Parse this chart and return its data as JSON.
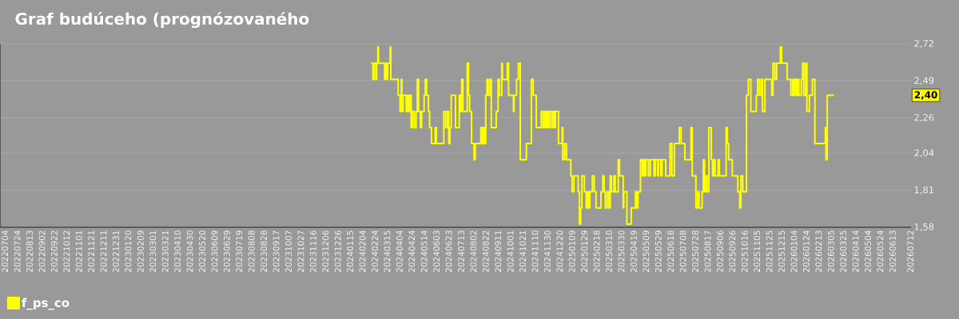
{
  "chart_data": {
    "type": "step",
    "title": "Graf budúceho (prognózovaného",
    "x": [
      "2024-02-18",
      "2024-02-21",
      "2024-02-23",
      "2024-02-26",
      "2024-02-27",
      "2024-02-29",
      "2024-03-01",
      "2024-03-11",
      "2024-03-13",
      "2024-03-14",
      "2024-03-16",
      "2024-03-20",
      "2024-03-21",
      "2024-04-02",
      "2024-04-05",
      "2024-04-07",
      "2024-04-08",
      "2024-04-10",
      "2024-04-15",
      "2024-04-17",
      "2024-04-19",
      "2024-04-21",
      "2024-04-23",
      "2024-04-25",
      "2024-04-28",
      "2024-05-01",
      "2024-05-03",
      "2024-05-05",
      "2024-05-08",
      "2024-05-10",
      "2024-05-14",
      "2024-05-16",
      "2024-05-18",
      "2024-05-21",
      "2024-05-23",
      "2024-05-26",
      "2024-06-01",
      "2024-06-03",
      "2024-06-15",
      "2024-06-18",
      "2024-06-21",
      "2024-06-23",
      "2024-06-25",
      "2024-06-27",
      "2024-07-04",
      "2024-07-10",
      "2024-07-12",
      "2024-07-14",
      "2024-07-16",
      "2024-07-23",
      "2024-07-25",
      "2024-07-27",
      "2024-07-30",
      "2024-08-03",
      "2024-08-05",
      "2024-08-14",
      "2024-08-16",
      "2024-08-18",
      "2024-08-20",
      "2024-08-22",
      "2024-08-24",
      "2024-08-26",
      "2024-08-29",
      "2024-08-31",
      "2024-09-08",
      "2024-09-11",
      "2024-09-13",
      "2024-09-17",
      "2024-09-18",
      "2024-09-26",
      "2024-09-28",
      "2024-10-06",
      "2024-10-07",
      "2024-10-11",
      "2024-10-14",
      "2024-10-17",
      "2024-10-27",
      "2024-11-04",
      "2024-11-07",
      "2024-11-12",
      "2024-11-20",
      "2024-11-23",
      "2024-11-25",
      "2024-11-27",
      "2024-11-29",
      "2024-12-01",
      "2024-12-03",
      "2024-12-06",
      "2024-12-09",
      "2024-12-11",
      "2024-12-13",
      "2024-12-18",
      "2024-12-24",
      "2024-12-25",
      "2024-12-28",
      "2024-12-31",
      "2025-01-07",
      "2025-01-09",
      "2025-01-12",
      "2025-01-19",
      "2025-01-21",
      "2025-01-23",
      "2025-01-25",
      "2025-01-29",
      "2025-02-01",
      "2025-02-03",
      "2025-02-05",
      "2025-02-07",
      "2025-02-11",
      "2025-02-14",
      "2025-02-17",
      "2025-02-25",
      "2025-02-28",
      "2025-03-02",
      "2025-03-04",
      "2025-03-07",
      "2025-03-10",
      "2025-03-12",
      "2025-03-14",
      "2025-03-18",
      "2025-03-20",
      "2025-03-25",
      "2025-03-27",
      "2025-04-02",
      "2025-04-03",
      "2025-04-08",
      "2025-04-15",
      "2025-04-22",
      "2025-04-24",
      "2025-04-26",
      "2025-04-30",
      "2025-05-03",
      "2025-05-05",
      "2025-05-07",
      "2025-05-09",
      "2025-05-13",
      "2025-05-16",
      "2025-05-22",
      "2025-05-24",
      "2025-05-28",
      "2025-05-29",
      "2025-06-02",
      "2025-06-04",
      "2025-06-10",
      "2025-06-17",
      "2025-06-20",
      "2025-06-24",
      "2025-07-02",
      "2025-07-05",
      "2025-07-11",
      "2025-07-21",
      "2025-07-23",
      "2025-07-29",
      "2025-08-01",
      "2025-08-03",
      "2025-08-08",
      "2025-08-10",
      "2025-08-12",
      "2025-08-14",
      "2025-08-16",
      "2025-08-19",
      "2025-08-23",
      "2025-08-25",
      "2025-08-27",
      "2025-08-29",
      "2025-09-03",
      "2025-09-05",
      "2025-09-16",
      "2025-09-18",
      "2025-09-20",
      "2025-09-26",
      "2025-10-05",
      "2025-10-08",
      "2025-10-10",
      "2025-10-13",
      "2025-10-19",
      "2025-10-22",
      "2025-10-26",
      "2025-11-04",
      "2025-11-06",
      "2025-11-09",
      "2025-11-12",
      "2025-11-14",
      "2025-11-18",
      "2025-11-29",
      "2025-12-01",
      "2025-12-04",
      "2025-12-07",
      "2025-12-13",
      "2025-12-15",
      "2025-12-24",
      "2025-12-30",
      "2026-01-02",
      "2026-01-04",
      "2026-01-06",
      "2026-01-08",
      "2026-01-10",
      "2026-01-12",
      "2026-01-16",
      "2026-01-18",
      "2026-01-20",
      "2026-01-23",
      "2026-01-25",
      "2026-01-29",
      "2026-02-03",
      "2026-02-07",
      "2026-02-24",
      "2026-02-25",
      "2026-02-27",
      "2026-03-10"
    ],
    "series": [
      {
        "name": "f_ps_co",
        "color": "#ffff00",
        "values": [
          2.6,
          2.5,
          2.6,
          2.5,
          2.6,
          2.7,
          2.6,
          2.5,
          2.6,
          2.5,
          2.6,
          2.7,
          2.5,
          2.4,
          2.3,
          2.5,
          2.3,
          2.4,
          2.3,
          2.4,
          2.3,
          2.4,
          2.2,
          2.3,
          2.2,
          2.3,
          2.5,
          2.3,
          2.2,
          2.3,
          2.4,
          2.5,
          2.4,
          2.3,
          2.2,
          2.1,
          2.2,
          2.1,
          2.3,
          2.2,
          2.3,
          2.1,
          2.2,
          2.4,
          2.2,
          2.4,
          2.3,
          2.5,
          2.3,
          2.6,
          2.4,
          2.3,
          2.1,
          2.0,
          2.1,
          2.2,
          2.1,
          2.2,
          2.1,
          2.4,
          2.5,
          2.4,
          2.5,
          2.2,
          2.3,
          2.5,
          2.4,
          2.6,
          2.5,
          2.6,
          2.4,
          2.3,
          2.4,
          2.5,
          2.6,
          2.0,
          2.1,
          2.5,
          2.4,
          2.2,
          2.3,
          2.2,
          2.3,
          2.2,
          2.3,
          2.2,
          2.3,
          2.2,
          2.3,
          2.2,
          2.3,
          2.1,
          2.2,
          2.0,
          2.1,
          2.0,
          1.9,
          1.8,
          1.9,
          1.8,
          1.6,
          1.7,
          1.9,
          1.8,
          1.7,
          1.8,
          1.7,
          1.8,
          1.9,
          1.8,
          1.7,
          1.8,
          1.9,
          1.8,
          1.7,
          1.8,
          1.7,
          1.9,
          1.8,
          1.9,
          1.8,
          2.0,
          1.9,
          1.7,
          1.8,
          1.6,
          1.7,
          1.8,
          1.7,
          1.8,
          2.0,
          1.9,
          2.0,
          1.9,
          2.0,
          1.9,
          2.0,
          1.9,
          2.0,
          1.9,
          2.0,
          1.9,
          2.0,
          1.9,
          2.1,
          1.9,
          2.1,
          2.2,
          2.1,
          2.0,
          2.2,
          1.9,
          1.7,
          1.8,
          1.7,
          1.8,
          2.0,
          1.8,
          1.9,
          1.8,
          2.2,
          2.0,
          1.9,
          2.0,
          1.9,
          2.0,
          1.9,
          2.2,
          2.1,
          2.0,
          1.9,
          1.8,
          1.7,
          1.9,
          1.8,
          2.4,
          2.5,
          2.3,
          2.4,
          2.5,
          2.4,
          2.5,
          2.3,
          2.5,
          2.4,
          2.6,
          2.5,
          2.6,
          2.7,
          2.6,
          2.5,
          2.4,
          2.5,
          2.4,
          2.5,
          2.4,
          2.5,
          2.4,
          2.5,
          2.6,
          2.4,
          2.6,
          2.3,
          2.4,
          2.5,
          2.1,
          2.2,
          2.0,
          2.4,
          2.4
        ]
      }
    ],
    "xlim": [
      "2022-06-26",
      "2026-07-13"
    ],
    "xticks": [
      {
        "value": "2022-07-04",
        "label": "20220704"
      },
      {
        "value": "2022-07-24",
        "label": "20220724"
      },
      {
        "value": "2022-08-13",
        "label": "20220813"
      },
      {
        "value": "2022-09-02",
        "label": "20220902"
      },
      {
        "value": "2022-09-22",
        "label": "20220922"
      },
      {
        "value": "2022-10-12",
        "label": "20221012"
      },
      {
        "value": "2022-11-01",
        "label": "20221101"
      },
      {
        "value": "2022-11-21",
        "label": "20221121"
      },
      {
        "value": "2022-12-11",
        "label": "20221211"
      },
      {
        "value": "2022-12-31",
        "label": "20221231"
      },
      {
        "value": "2023-01-20",
        "label": "20230120"
      },
      {
        "value": "2023-02-09",
        "label": "20230209"
      },
      {
        "value": "2023-03-01",
        "label": "20230301"
      },
      {
        "value": "2023-03-21",
        "label": "20230321"
      },
      {
        "value": "2023-04-10",
        "label": "20230410"
      },
      {
        "value": "2023-04-30",
        "label": "20230430"
      },
      {
        "value": "2023-05-20",
        "label": "20230520"
      },
      {
        "value": "2023-06-09",
        "label": "20230609"
      },
      {
        "value": "2023-06-29",
        "label": "20230629"
      },
      {
        "value": "2023-07-19",
        "label": "20230719"
      },
      {
        "value": "2023-08-08",
        "label": "20230808"
      },
      {
        "value": "2023-08-28",
        "label": "20230828"
      },
      {
        "value": "2023-09-17",
        "label": "20230917"
      },
      {
        "value": "2023-10-07",
        "label": "20231007"
      },
      {
        "value": "2023-10-27",
        "label": "20231027"
      },
      {
        "value": "2023-11-16",
        "label": "20231116"
      },
      {
        "value": "2023-12-06",
        "label": "20231206"
      },
      {
        "value": "2023-12-26",
        "label": "20231226"
      },
      {
        "value": "2024-01-15",
        "label": "20240115"
      },
      {
        "value": "2024-02-04",
        "label": "20240204"
      },
      {
        "value": "2024-02-24",
        "label": "20240224"
      },
      {
        "value": "2024-03-15",
        "label": "20240315"
      },
      {
        "value": "2024-04-04",
        "label": "20240404"
      },
      {
        "value": "2024-04-24",
        "label": "20240424"
      },
      {
        "value": "2024-05-14",
        "label": "20240514"
      },
      {
        "value": "2024-06-03",
        "label": "20240603"
      },
      {
        "value": "2024-06-23",
        "label": "20240623"
      },
      {
        "value": "2024-07-13",
        "label": "20240713"
      },
      {
        "value": "2024-08-02",
        "label": "20240802"
      },
      {
        "value": "2024-08-22",
        "label": "20240822"
      },
      {
        "value": "2024-09-11",
        "label": "20240911"
      },
      {
        "value": "2024-10-01",
        "label": "20241001"
      },
      {
        "value": "2024-10-21",
        "label": "20241021"
      },
      {
        "value": "2024-11-10",
        "label": "20241110"
      },
      {
        "value": "2024-11-30",
        "label": "20241130"
      },
      {
        "value": "2024-12-20",
        "label": "20241220"
      },
      {
        "value": "2025-01-09",
        "label": "20250109"
      },
      {
        "value": "2025-01-29",
        "label": "20250129"
      },
      {
        "value": "2025-02-18",
        "label": "20250218"
      },
      {
        "value": "2025-03-10",
        "label": "20250310"
      },
      {
        "value": "2025-03-30",
        "label": "20250330"
      },
      {
        "value": "2025-04-19",
        "label": "20250419"
      },
      {
        "value": "2025-05-09",
        "label": "20250509"
      },
      {
        "value": "2025-05-29",
        "label": "20250529"
      },
      {
        "value": "2025-06-18",
        "label": "20250618"
      },
      {
        "value": "2025-07-08",
        "label": "20250708"
      },
      {
        "value": "2025-07-28",
        "label": "20250728"
      },
      {
        "value": "2025-08-17",
        "label": "20250817"
      },
      {
        "value": "2025-09-06",
        "label": "20250906"
      },
      {
        "value": "2025-09-26",
        "label": "20250926"
      },
      {
        "value": "2025-10-16",
        "label": "20251016"
      },
      {
        "value": "2025-11-05",
        "label": "20251105"
      },
      {
        "value": "2025-11-25",
        "label": "20251125"
      },
      {
        "value": "2025-12-15",
        "label": "20251215"
      },
      {
        "value": "2026-01-04",
        "label": "20260104"
      },
      {
        "value": "2026-01-24",
        "label": "20260124"
      },
      {
        "value": "2026-02-13",
        "label": "20260213"
      },
      {
        "value": "2026-03-05",
        "label": "20260305"
      },
      {
        "value": "2026-03-25",
        "label": "20260325"
      },
      {
        "value": "2026-04-14",
        "label": "20260414"
      },
      {
        "value": "2026-05-04",
        "label": "20260504"
      },
      {
        "value": "2026-05-24",
        "label": "20260524"
      },
      {
        "value": "2026-06-13",
        "label": "20260613"
      },
      {
        "value": "2026-07-12",
        "label": "20260712"
      }
    ],
    "ylim": [
      1.58,
      2.72
    ],
    "yticks": [
      {
        "value": 1.58,
        "label": "1,58"
      },
      {
        "value": 1.81,
        "label": "1,81"
      },
      {
        "value": 2.04,
        "label": "2,04"
      },
      {
        "value": 2.26,
        "label": "2,26"
      },
      {
        "value": 2.49,
        "label": "2,49"
      },
      {
        "value": 2.72,
        "label": "2,72"
      }
    ],
    "grid": "y",
    "legend": "bottom left",
    "annotations": [
      {
        "text": "2,40",
        "y": 2.4
      }
    ]
  }
}
